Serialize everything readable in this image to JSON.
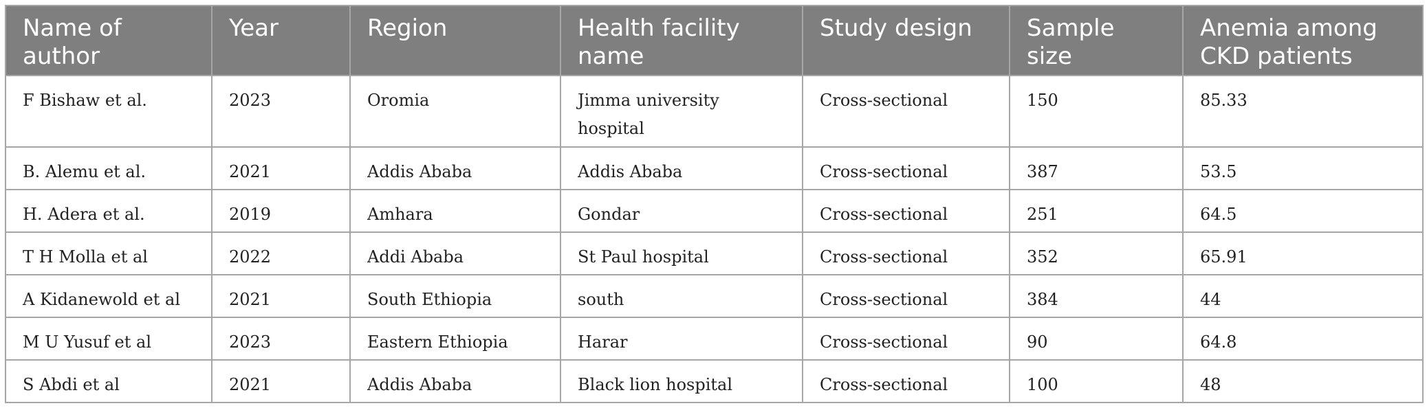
{
  "table": {
    "columns": [
      "Name of author",
      "Year",
      "Region",
      "Health facility name",
      "Study design",
      "Sample size",
      "Anemia among CKD patients"
    ],
    "rows": [
      [
        "F Bishaw et al.",
        "2023",
        "Oromia",
        "Jimma university hospital",
        "Cross-sectional",
        "150",
        "85.33"
      ],
      [
        "B. Alemu et al.",
        "2021",
        "Addis Ababa",
        "Addis Ababa",
        "Cross-sectional",
        "387",
        "53.5"
      ],
      [
        "H. Adera et al.",
        "2019",
        "Amhara",
        "Gondar",
        "Cross-sectional",
        "251",
        "64.5"
      ],
      [
        "T H Molla et al",
        "2022",
        "Addi Ababa",
        "St Paul hospital",
        "Cross-sectional",
        "352",
        "65.91"
      ],
      [
        "A Kidanewold et al",
        "2021",
        "South Ethiopia",
        "south",
        "Cross-sectional",
        "384",
        "44"
      ],
      [
        "M U Yusuf et al",
        "2023",
        "Eastern Ethiopia",
        "Harar",
        "Cross-sectional",
        "90",
        "64.8"
      ],
      [
        "S Abdi et al",
        "2021",
        "Addis Ababa",
        "Black lion hospital",
        "Cross-sectional",
        "100",
        "48"
      ]
    ]
  }
}
